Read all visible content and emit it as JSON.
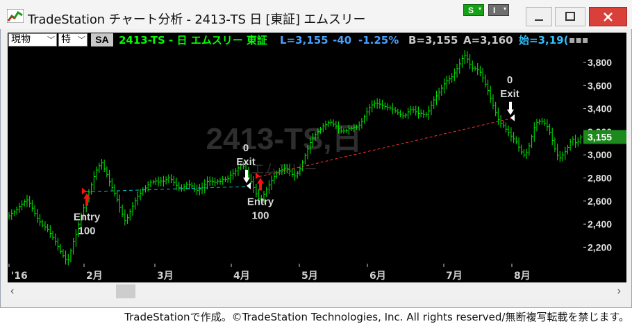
{
  "window": {
    "title": "TradeStation チャート分析 - 2413-TS 日 [東証] エムスリー",
    "toolbar": {
      "s_label": "S",
      "i_label": "I"
    }
  },
  "infobar": {
    "select1": "現物",
    "select2": "特",
    "sa": "SA",
    "symbol_text": "2413-TS - 日  エムスリー  東証",
    "last": "L=3,155",
    "change": "-40",
    "change_pct": "-1.25%",
    "bid": "B=3,155",
    "ask": "A=3,160",
    "open": "始=3,19("
  },
  "colors": {
    "bar": "#00e000",
    "symbol": "#00ff00",
    "quote_blue": "#4aa0ff",
    "quote_gray": "#c8c8c8",
    "open_blue": "#30c0ff",
    "watermark": "#2e2e2e",
    "entry_arrow": "#ff1010",
    "exit_arrow": "#ffffff",
    "trade_line_1": "#00c8d0",
    "trade_line_2": "#ff3030",
    "last_price_bg": "#1d8a1d"
  },
  "chart": {
    "watermark_symbol": "2413-TS,日",
    "watermark_name": "エムスリー",
    "last_price_label": "3,155",
    "y_ticks": [
      "3,800",
      "3,600",
      "3,400",
      "3,200",
      "3,000",
      "2,800",
      "2,600",
      "2,400",
      "2,200"
    ],
    "x_ticks": [
      "'16",
      "2月",
      "3月",
      "4月",
      "5月",
      "6月",
      "7月",
      "8月"
    ],
    "signals": [
      {
        "name": "entry-1",
        "label": "Entry",
        "qty": "100"
      },
      {
        "name": "exit-1",
        "label": "Exit",
        "qty": "0"
      },
      {
        "name": "entry-2",
        "label": "Entry",
        "qty": "100"
      },
      {
        "name": "exit-2",
        "label": "Exit",
        "qty": "0"
      }
    ]
  },
  "chart_data": {
    "type": "bar",
    "title": "2413-TS - 日 エムスリー 東証",
    "ylim": [
      2050,
      3950
    ],
    "y_ticks": [
      2200,
      2400,
      2600,
      2800,
      3000,
      3200,
      3400,
      3600,
      3800
    ],
    "x_ticks": [
      "'16",
      "2月",
      "3月",
      "4月",
      "5月",
      "6月",
      "7月",
      "8月"
    ],
    "last": 3155,
    "closes": [
      2472,
      2494,
      2506,
      2528,
      2552,
      2573,
      2595,
      2610,
      2580,
      2538,
      2492,
      2452,
      2420,
      2392,
      2376,
      2355,
      2319,
      2285,
      2250,
      2205,
      2165,
      2126,
      2096,
      2090,
      2168,
      2250,
      2311,
      2400,
      2470,
      2541,
      2615,
      2678,
      2740,
      2812,
      2868,
      2906,
      2931,
      2878,
      2829,
      2768,
      2717,
      2668,
      2611,
      2545,
      2485,
      2433,
      2456,
      2509,
      2556,
      2602,
      2642,
      2668,
      2698,
      2713,
      2740,
      2763,
      2767,
      2774,
      2765,
      2773,
      2772,
      2786,
      2800,
      2787,
      2761,
      2736,
      2716,
      2711,
      2725,
      2743,
      2741,
      2731,
      2702,
      2693,
      2706,
      2714,
      2744,
      2770,
      2773,
      2769,
      2759,
      2772,
      2769,
      2788,
      2788,
      2793,
      2825,
      2838,
      2861,
      2887,
      2911,
      2903,
      2864,
      2817,
      2768,
      2718,
      2662,
      2619,
      2617,
      2657,
      2703,
      2739,
      2776,
      2813,
      2845,
      2866,
      2871,
      2882,
      2880,
      2860,
      2831,
      2817,
      2838,
      2880,
      2935,
      2995,
      3051,
      3106,
      3145,
      3175,
      3202,
      3223,
      3250,
      3262,
      3278,
      3282,
      3266,
      3248,
      3225,
      3206,
      3207,
      3208,
      3225,
      3227,
      3239,
      3241,
      3257,
      3289,
      3331,
      3372,
      3408,
      3433,
      3445,
      3445,
      3439,
      3429,
      3419,
      3410,
      3405,
      3396,
      3380,
      3364,
      3348,
      3337,
      3344,
      3373,
      3391,
      3391,
      3374,
      3359,
      3360,
      3350,
      3347,
      3380,
      3430,
      3475,
      3511,
      3543,
      3578,
      3615,
      3641,
      3658,
      3676,
      3710,
      3747,
      3788,
      3833,
      3860,
      3829,
      3785,
      3750,
      3747,
      3737,
      3715,
      3666,
      3612,
      3557,
      3491,
      3428,
      3366,
      3304,
      3274,
      3252,
      3222,
      3192,
      3162,
      3138,
      3113,
      3066,
      3025,
      2999,
      3019,
      3079,
      3158,
      3236,
      3280,
      3291,
      3291,
      3271,
      3244,
      3196,
      3124,
      3051,
      2997,
      2973,
      2999,
      3027,
      3064,
      3112,
      3131,
      3106,
      3115,
      3155
    ],
    "signals": [
      {
        "type": "entry",
        "label": "Entry",
        "qty": 100,
        "price": 2680,
        "x_label": "2月"
      },
      {
        "type": "exit",
        "label": "Exit",
        "qty": 0,
        "price": 2726,
        "x_label": "4月"
      },
      {
        "type": "entry",
        "label": "Entry",
        "qty": 100,
        "price": 2812,
        "x_label": "4月"
      },
      {
        "type": "exit",
        "label": "Exit",
        "qty": 0,
        "price": 3315,
        "x_label": "8月"
      }
    ]
  }
}
